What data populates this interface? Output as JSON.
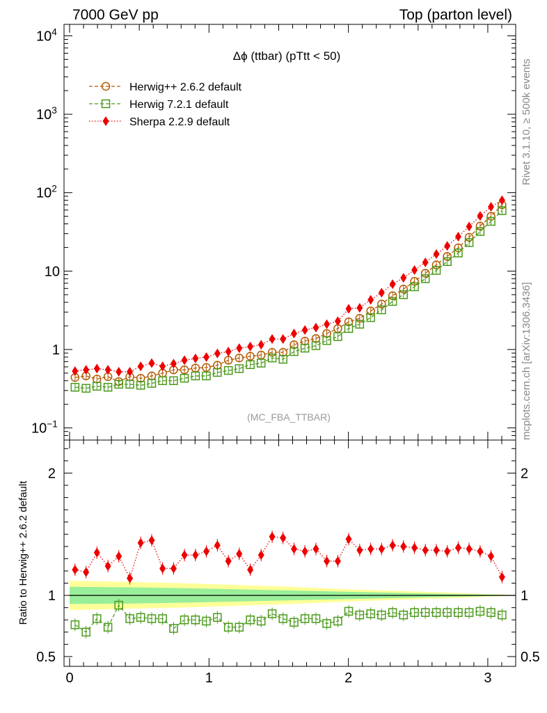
{
  "header": {
    "left": "7000 GeV pp",
    "right": "Top (parton level)"
  },
  "side": {
    "rivet": "Rivet 3.1.10, ≥ 500k events",
    "mcplots": "mcplots.cern.ch [arXiv:1306.3436]"
  },
  "chart_data": [
    {
      "type": "line",
      "title": "Δϕ (ttbar) (pTtt < 50)",
      "watermark": "(MC_FBA_TTBAR)",
      "xlabel": "",
      "ylabel": "",
      "xlim": [
        -0.04,
        3.2
      ],
      "ylim": [
        0.07,
        14000
      ],
      "yscale": "log",
      "yticks": [
        0.1,
        1,
        10,
        100,
        1000,
        10000
      ],
      "ytick_labels": [
        "10⁻¹",
        "1",
        "10",
        "10²",
        "10³",
        "10⁴"
      ],
      "legend_position": "top-left",
      "x": [
        0.039,
        0.118,
        0.196,
        0.275,
        0.353,
        0.432,
        0.51,
        0.589,
        0.667,
        0.746,
        0.824,
        0.903,
        0.981,
        1.06,
        1.139,
        1.217,
        1.296,
        1.374,
        1.453,
        1.531,
        1.61,
        1.688,
        1.767,
        1.845,
        1.924,
        2.002,
        2.081,
        2.16,
        2.238,
        2.317,
        2.395,
        2.474,
        2.552,
        2.631,
        2.709,
        2.788,
        2.866,
        2.945,
        3.023,
        3.102
      ],
      "series": [
        {
          "name": "Herwig++ 2.6.2 default",
          "color": "#b35900",
          "marker": "circle",
          "values": [
            0.44,
            0.46,
            0.42,
            0.45,
            0.39,
            0.45,
            0.43,
            0.46,
            0.5,
            0.55,
            0.55,
            0.58,
            0.59,
            0.63,
            0.73,
            0.78,
            0.82,
            0.85,
            0.92,
            0.92,
            1.15,
            1.28,
            1.38,
            1.6,
            1.85,
            2.25,
            2.5,
            3.1,
            3.8,
            4.85,
            5.9,
            7.4,
            9.4,
            12.0,
            15.4,
            19.8,
            27.0,
            37.5,
            50.0,
            70.0
          ]
        },
        {
          "name": "Herwig 7.2.1 default",
          "color": "#4a9a1a",
          "marker": "square",
          "values": [
            0.33,
            0.32,
            0.34,
            0.33,
            0.36,
            0.36,
            0.35,
            0.37,
            0.4,
            0.4,
            0.43,
            0.46,
            0.46,
            0.51,
            0.54,
            0.57,
            0.64,
            0.67,
            0.78,
            0.75,
            0.94,
            1.04,
            1.12,
            1.3,
            1.46,
            1.85,
            2.1,
            2.55,
            3.2,
            4.1,
            5.0,
            6.3,
            8.0,
            10.2,
            13.2,
            17.0,
            23.1,
            32.0,
            43.0,
            59.0
          ]
        },
        {
          "name": "Sherpa 2.2.9 default",
          "color": "#ee0000",
          "marker": "diamond",
          "values": [
            0.53,
            0.55,
            0.57,
            0.55,
            0.52,
            0.52,
            0.61,
            0.67,
            0.61,
            0.66,
            0.73,
            0.77,
            0.8,
            0.89,
            0.94,
            1.04,
            1.09,
            1.15,
            1.36,
            1.36,
            1.6,
            1.77,
            1.9,
            2.1,
            2.3,
            3.3,
            3.4,
            4.3,
            5.3,
            6.8,
            8.2,
            10.3,
            12.9,
            16.5,
            20.9,
            27.5,
            37.0,
            50.5,
            66.0,
            80.0
          ]
        }
      ]
    },
    {
      "type": "line",
      "title": "",
      "xlabel": "",
      "ylabel": "Ratio to Herwig++ 2.6.2 default",
      "xlim": [
        -0.04,
        3.2
      ],
      "ylim": [
        0.42,
        2.27
      ],
      "xticks": [
        0,
        1,
        2,
        3
      ],
      "yticks": [
        0.5,
        1,
        2
      ],
      "reference": 1,
      "uncertainty_band": {
        "x": [
          0.0,
          0.4,
          0.8,
          1.2,
          1.6,
          2.0,
          2.4,
          2.8,
          3.0,
          3.14
        ],
        "inner_halfwidth": [
          0.07,
          0.067,
          0.06,
          0.05,
          0.04,
          0.03,
          0.02,
          0.01,
          0.006,
          0.004
        ],
        "outer_halfwidth": [
          0.12,
          0.11,
          0.1,
          0.085,
          0.07,
          0.05,
          0.035,
          0.02,
          0.01,
          0.006
        ],
        "inner_color": "#99ee99",
        "outer_color": "#ffff99"
      },
      "series": [
        {
          "name": "Herwig 7.2.1 default",
          "color": "#4a9a1a",
          "marker": "square",
          "values": [
            0.76,
            0.7,
            0.81,
            0.74,
            0.92,
            0.81,
            0.82,
            0.81,
            0.81,
            0.73,
            0.8,
            0.8,
            0.79,
            0.82,
            0.74,
            0.74,
            0.8,
            0.79,
            0.85,
            0.81,
            0.78,
            0.81,
            0.81,
            0.77,
            0.79,
            0.87,
            0.84,
            0.85,
            0.84,
            0.86,
            0.84,
            0.86,
            0.86,
            0.86,
            0.86,
            0.86,
            0.86,
            0.87,
            0.86,
            0.84
          ]
        },
        {
          "name": "Sherpa 2.2.9 default",
          "color": "#ee0000",
          "marker": "diamond",
          "values": [
            1.21,
            1.19,
            1.35,
            1.24,
            1.32,
            1.14,
            1.43,
            1.45,
            1.22,
            1.22,
            1.33,
            1.33,
            1.36,
            1.41,
            1.28,
            1.34,
            1.21,
            1.33,
            1.48,
            1.47,
            1.38,
            1.36,
            1.38,
            1.28,
            1.28,
            1.46,
            1.37,
            1.38,
            1.38,
            1.41,
            1.4,
            1.39,
            1.37,
            1.37,
            1.36,
            1.39,
            1.38,
            1.36,
            1.32,
            1.15
          ]
        }
      ]
    }
  ]
}
